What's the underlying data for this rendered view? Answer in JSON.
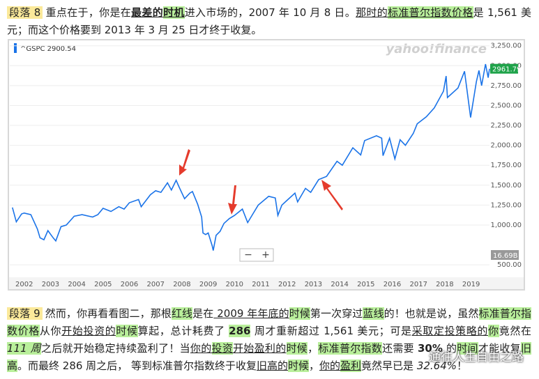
{
  "paragraph_1": {
    "label": "段落 8",
    "runs": [
      "重点在于，你是在",
      "最差的",
      "时机",
      "进入市场的，2007 年 10 月 8 日。",
      "那时的",
      "标准普尔指数价格",
      "是 1,561 美元；而这个价格要到 2013 年 3 月 25 日才终于收复。"
    ]
  },
  "chart": {
    "type": "line",
    "legend": "^GSPC 2900.54",
    "brand": "yahoo!finance",
    "color": "#1a73e8",
    "x": [
      2001.55,
      2001.7,
      2001.9,
      2002.0,
      2002.25,
      2002.5,
      2002.6,
      2002.75,
      2002.9,
      2003.1,
      2003.2,
      2003.4,
      2003.6,
      2003.9,
      2004.2,
      2004.6,
      2004.8,
      2005.0,
      2005.3,
      2005.6,
      2005.8,
      2006.0,
      2006.35,
      2006.45,
      2006.8,
      2007.0,
      2007.2,
      2007.45,
      2007.6,
      2007.78,
      2007.9,
      2008.1,
      2008.3,
      2008.4,
      2008.6,
      2008.75,
      2008.8,
      2008.9,
      2009.0,
      2009.15,
      2009.19,
      2009.3,
      2009.45,
      2009.6,
      2009.8,
      2010.0,
      2010.3,
      2010.5,
      2010.7,
      2010.9,
      2011.3,
      2011.55,
      2011.65,
      2011.8,
      2012.0,
      2012.3,
      2012.4,
      2012.7,
      2012.9,
      2013.2,
      2013.5,
      2013.9,
      2014.1,
      2014.5,
      2014.8,
      2014.95,
      2015.4,
      2015.6,
      2015.65,
      2015.9,
      2016.1,
      2016.3,
      2016.5,
      2016.8,
      2016.95,
      2017.3,
      2017.6,
      2017.95,
      2018.05,
      2018.1,
      2018.5,
      2018.75,
      2018.98,
      2019.2,
      2019.3,
      2019.4,
      2019.55,
      2019.65,
      2019.7
    ],
    "values": [
      1220,
      1040,
      1140,
      1150,
      1130,
      950,
      840,
      815,
      930,
      840,
      800,
      980,
      1000,
      1110,
      1130,
      1100,
      1130,
      1210,
      1170,
      1230,
      1200,
      1280,
      1320,
      1230,
      1380,
      1430,
      1410,
      1530,
      1440,
      1561,
      1470,
      1330,
      1400,
      1420,
      1260,
      1100,
      900,
      880,
      900,
      740,
      680,
      870,
      920,
      1020,
      1080,
      1120,
      1200,
      1030,
      1140,
      1250,
      1360,
      1340,
      1120,
      1250,
      1310,
      1400,
      1290,
      1460,
      1410,
      1570,
      1610,
      1800,
      1750,
      1970,
      1880,
      2060,
      2120,
      2090,
      1870,
      2090,
      1830,
      2070,
      2000,
      2150,
      2270,
      2360,
      2470,
      2680,
      2870,
      2600,
      2720,
      2930,
      2350,
      2800,
      2940,
      2750,
      3020,
      2850,
      2961.79
    ],
    "last_label": "2961.79",
    "volume_label": "16.69B",
    "zoom_out": "−",
    "zoom_in": "+",
    "xlim": [
      2001.45,
      2019.7
    ],
    "xticks": [
      2002,
      2003,
      2004,
      2005,
      2006,
      2007,
      2008,
      2009,
      2010,
      2011,
      2012,
      2013,
      2014,
      2015,
      2016,
      2017,
      2018,
      2019
    ],
    "ylim": [
      370,
      3300
    ],
    "grid": true,
    "yticks": [
      {
        "value": 3250,
        "label": "3,250.00"
      },
      {
        "value": 3000,
        "label": "3,000.00"
      },
      {
        "value": 2750,
        "label": "2,750.00"
      },
      {
        "value": 2500,
        "label": "2,500.00"
      },
      {
        "value": 2250,
        "label": "2,250.00"
      },
      {
        "value": 2000,
        "label": "2,000.00"
      },
      {
        "value": 1750,
        "label": "1,750.00"
      },
      {
        "value": 1500,
        "label": "1,500.00"
      },
      {
        "value": 1250,
        "label": "1,250.00"
      },
      {
        "value": 1000,
        "label": "1,000.00"
      },
      {
        "value": 500,
        "label": "500.00"
      }
    ]
  },
  "paragraph_2": {
    "label": "段落 9",
    "runs": [
      "然而，你再看看图二，那根",
      "红线",
      "是在",
      " 2009 年年底的",
      "时候",
      "第一次穿过",
      "蓝线",
      "的！也就是说，虽然",
      "标准普尔指数价格",
      "从你",
      "开始投资的",
      "时候",
      "算起，总计耗费了 ",
      "286",
      " 周才重新超过 1,561 美元；可是",
      "采取定投策略的",
      "你",
      "竟然在 ",
      "111 周",
      "之后就开始稳定持续盈利了！当",
      "你的",
      "投资",
      "开始盈利的",
      "时候",
      "，",
      "标准普尔指数",
      "还需要 ",
      "30%",
      " 的",
      "时间",
      "才能收复",
      "旧高",
      "。而最终 286 周之后， 等到标准普尔指数终于收复",
      "旧高的",
      "时候",
      "，",
      "你的",
      "盈利",
      "竟然早已是 ",
      "32.64%",
      "！"
    ]
  },
  "watermark": "通往人生自由之路"
}
